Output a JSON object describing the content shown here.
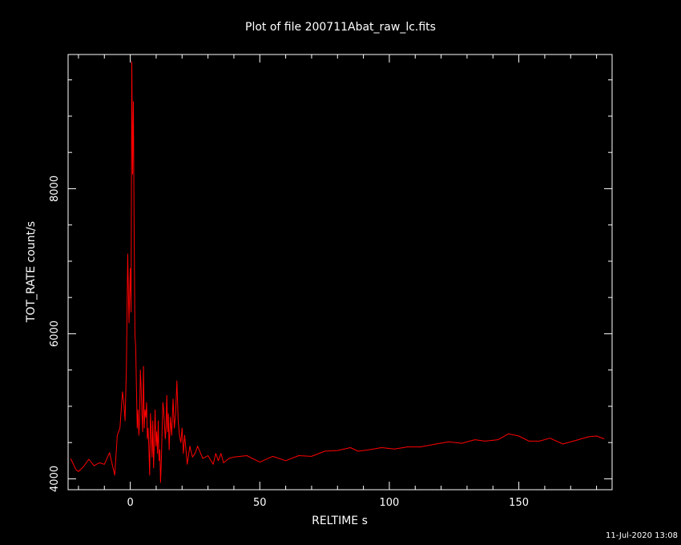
{
  "chart_data": {
    "type": "line",
    "title": "Plot of file 200711Abat_raw_lc.fits",
    "xlabel": "RELTIME  s",
    "ylabel": "TOT_RATE  count/s",
    "xlim": [
      -24,
      186
    ],
    "ylim": [
      3850,
      9850
    ],
    "x_ticks": [
      0,
      50,
      100,
      150
    ],
    "y_ticks": [
      4000,
      6000,
      8000
    ],
    "grid": false,
    "legend": "none",
    "line_color": "#ff0000",
    "axis_color": "#ffffff",
    "background": "#000000",
    "series": [
      {
        "x": [
          -23.0,
          -21.0,
          -20.0,
          -18.0,
          -16.0,
          -14.0,
          -12.0,
          -10.0,
          -8.0,
          -6.0,
          -5.0,
          -4.0,
          -3.0,
          -2.5,
          -2.0,
          -1.5,
          -1.0,
          -0.5,
          0.0,
          0.3,
          0.6,
          0.9,
          1.2,
          1.5,
          1.8,
          2.1,
          2.4,
          2.7,
          3.0,
          3.3,
          3.6,
          3.9,
          4.2,
          4.5,
          4.8,
          5.1,
          5.4,
          5.7,
          6.0,
          6.3,
          6.6,
          6.9,
          7.2,
          7.5,
          7.8,
          8.1,
          8.4,
          8.7,
          9.0,
          9.3,
          9.6,
          9.9,
          10.2,
          10.5,
          10.8,
          11.1,
          11.4,
          11.7,
          12.0,
          12.3,
          12.6,
          12.9,
          13.2,
          13.5,
          13.8,
          14.1,
          14.4,
          14.7,
          15.0,
          15.5,
          16.0,
          16.5,
          17.0,
          17.5,
          18.0,
          18.5,
          19.0,
          19.5,
          20.0,
          20.5,
          21.0,
          22.0,
          23.0,
          24.0,
          25.0,
          26.0,
          28.0,
          30.0,
          32.0,
          33.0,
          34.0,
          35.0,
          36.0,
          38.0,
          40.0,
          45.0,
          50.0,
          55.0,
          60.0,
          65.0,
          70.0,
          75.0,
          80.0,
          85.0,
          88.0,
          92.0,
          97.0,
          102.0,
          107.0,
          112.0,
          118.0,
          123.0,
          128.0,
          133.0,
          137.0,
          142.0,
          146.0,
          150.0,
          154.0,
          158.0,
          162.0,
          167.0,
          172.0,
          177.0,
          180.0,
          183.0
        ],
        "y": [
          4280,
          4130,
          4100,
          4170,
          4270,
          4180,
          4220,
          4200,
          4360,
          4050,
          4600,
          4700,
          5200,
          5050,
          4800,
          5550,
          7100,
          6150,
          6900,
          6300,
          9750,
          8200,
          9200,
          7500,
          6000,
          5800,
          5200,
          4700,
          4950,
          4600,
          4800,
          5500,
          5250,
          4900,
          4650,
          5550,
          4700,
          4950,
          4850,
          5050,
          4550,
          4700,
          4400,
          4050,
          4900,
          4650,
          4300,
          4800,
          4150,
          4550,
          4950,
          4450,
          4650,
          4350,
          4800,
          4250,
          4400,
          3950,
          4250,
          4700,
          5050,
          4950,
          4750,
          4550,
          4700,
          5150,
          4650,
          4900,
          4400,
          4850,
          4600,
          5100,
          4700,
          4900,
          5350,
          4800,
          4600,
          4500,
          4700,
          4350,
          4600,
          4200,
          4450,
          4300,
          4350,
          4450,
          4280,
          4320,
          4200,
          4350,
          4250,
          4350,
          4220,
          4280,
          4300,
          4320,
          4230,
          4310,
          4250,
          4320,
          4310,
          4380,
          4390,
          4430,
          4380,
          4400,
          4430,
          4410,
          4440,
          4440,
          4480,
          4510,
          4490,
          4540,
          4520,
          4540,
          4620,
          4590,
          4520,
          4520,
          4560,
          4480,
          4530,
          4580,
          4590,
          4550
        ]
      }
    ]
  },
  "footer": {
    "timestamp": "11-Jul-2020 13:08"
  }
}
